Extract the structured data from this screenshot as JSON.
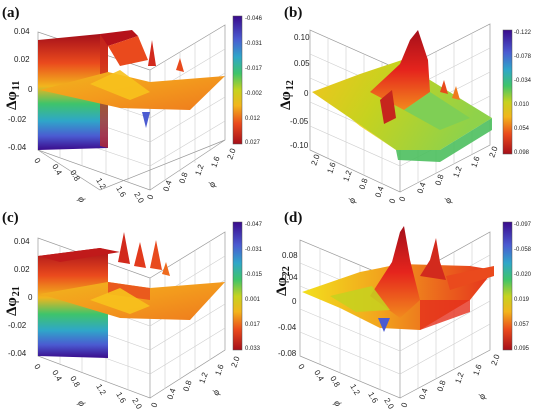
{
  "figure": {
    "panels": [
      {
        "id": "a",
        "label": "(a)",
        "z_label": "Δφ",
        "z_sub": "11",
        "z_ticks": [
          "0.04",
          "0.02",
          "0",
          "-0.02",
          "-0.04"
        ],
        "colorbar_ticks": [
          "-0.046",
          "-0.031",
          "-0.017",
          "-0.002",
          "0.012",
          "0.027"
        ],
        "axis_ticks_front": [
          "0",
          "0.4",
          "0.8",
          "1.2",
          "1.6",
          "2.0"
        ],
        "axis_ticks_side": [
          "0",
          "0.4",
          "0.8",
          "1.2",
          "1.6",
          "2.0"
        ],
        "axis_name_front": "ϕ",
        "axis_name_side": "ϕ",
        "colors": [
          "#3a0b8c",
          "#4b5bd1",
          "#2fa6c9",
          "#3fc46a",
          "#c6d21f",
          "#f2b51d",
          "#ea4a1d",
          "#a50f1a"
        ]
      },
      {
        "id": "b",
        "label": "(b)",
        "z_label": "Δφ",
        "z_sub": "12",
        "z_ticks": [
          "0.10",
          "0.05",
          "0",
          "-0.05",
          "-0.10"
        ],
        "colorbar_ticks": [
          "-0.122",
          "-0.078",
          "-0.034",
          "0.010",
          "0.054",
          "0.098"
        ],
        "axis_ticks_front": [
          "2.0",
          "1.6",
          "1.2",
          "0.8",
          "0.4",
          "0"
        ],
        "axis_ticks_side": [
          "0",
          "0.4",
          "0.8",
          "1.2",
          "1.6",
          "2.0"
        ],
        "axis_name_front": "ϕ",
        "axis_name_side": "ϕ",
        "colors": [
          "#3a0b8c",
          "#4b5bd1",
          "#2fa6c9",
          "#3fc46a",
          "#c6d21f",
          "#f2b51d",
          "#ea4a1d",
          "#a50f1a"
        ]
      },
      {
        "id": "c",
        "label": "(c)",
        "z_label": "Δφ",
        "z_sub": "21",
        "z_ticks": [
          "0.04",
          "0.02",
          "0",
          "-0.02",
          "-0.04"
        ],
        "colorbar_ticks": [
          "-0.047",
          "-0.031",
          "-0.015",
          "0.001",
          "0.017",
          "0.033"
        ],
        "axis_ticks_front": [
          "0",
          "0.4",
          "0.8",
          "1.2",
          "1.6",
          "2.0"
        ],
        "axis_ticks_side": [
          "0",
          "0.4",
          "0.8",
          "1.2",
          "1.6",
          "2.0"
        ],
        "axis_name_front": "ϕ",
        "axis_name_side": "ϕ",
        "colors": [
          "#3a0b8c",
          "#4b5bd1",
          "#2fa6c9",
          "#3fc46a",
          "#c6d21f",
          "#f2b51d",
          "#ea4a1d",
          "#a50f1a"
        ]
      },
      {
        "id": "d",
        "label": "(d)",
        "z_label": "Δφ",
        "z_sub": "22",
        "z_ticks": [
          "0.08",
          "0.04",
          "0",
          "-0.04",
          "-0.08"
        ],
        "colorbar_ticks": [
          "-0.097",
          "-0.058",
          "-0.020",
          "0.019",
          "0.057",
          "0.095"
        ],
        "axis_ticks_front": [
          "0",
          "0.4",
          "0.8",
          "1.2",
          "1.6",
          "2.0"
        ],
        "axis_ticks_side": [
          "0",
          "0.4",
          "0.8",
          "1.2",
          "1.6",
          "2.0"
        ],
        "axis_name_front": "ϕ",
        "axis_name_side": "ϕ",
        "colors": [
          "#3a0b8c",
          "#4b5bd1",
          "#2fa6c9",
          "#3fc46a",
          "#c6d21f",
          "#f2b51d",
          "#ea4a1d",
          "#a50f1a"
        ]
      }
    ]
  }
}
